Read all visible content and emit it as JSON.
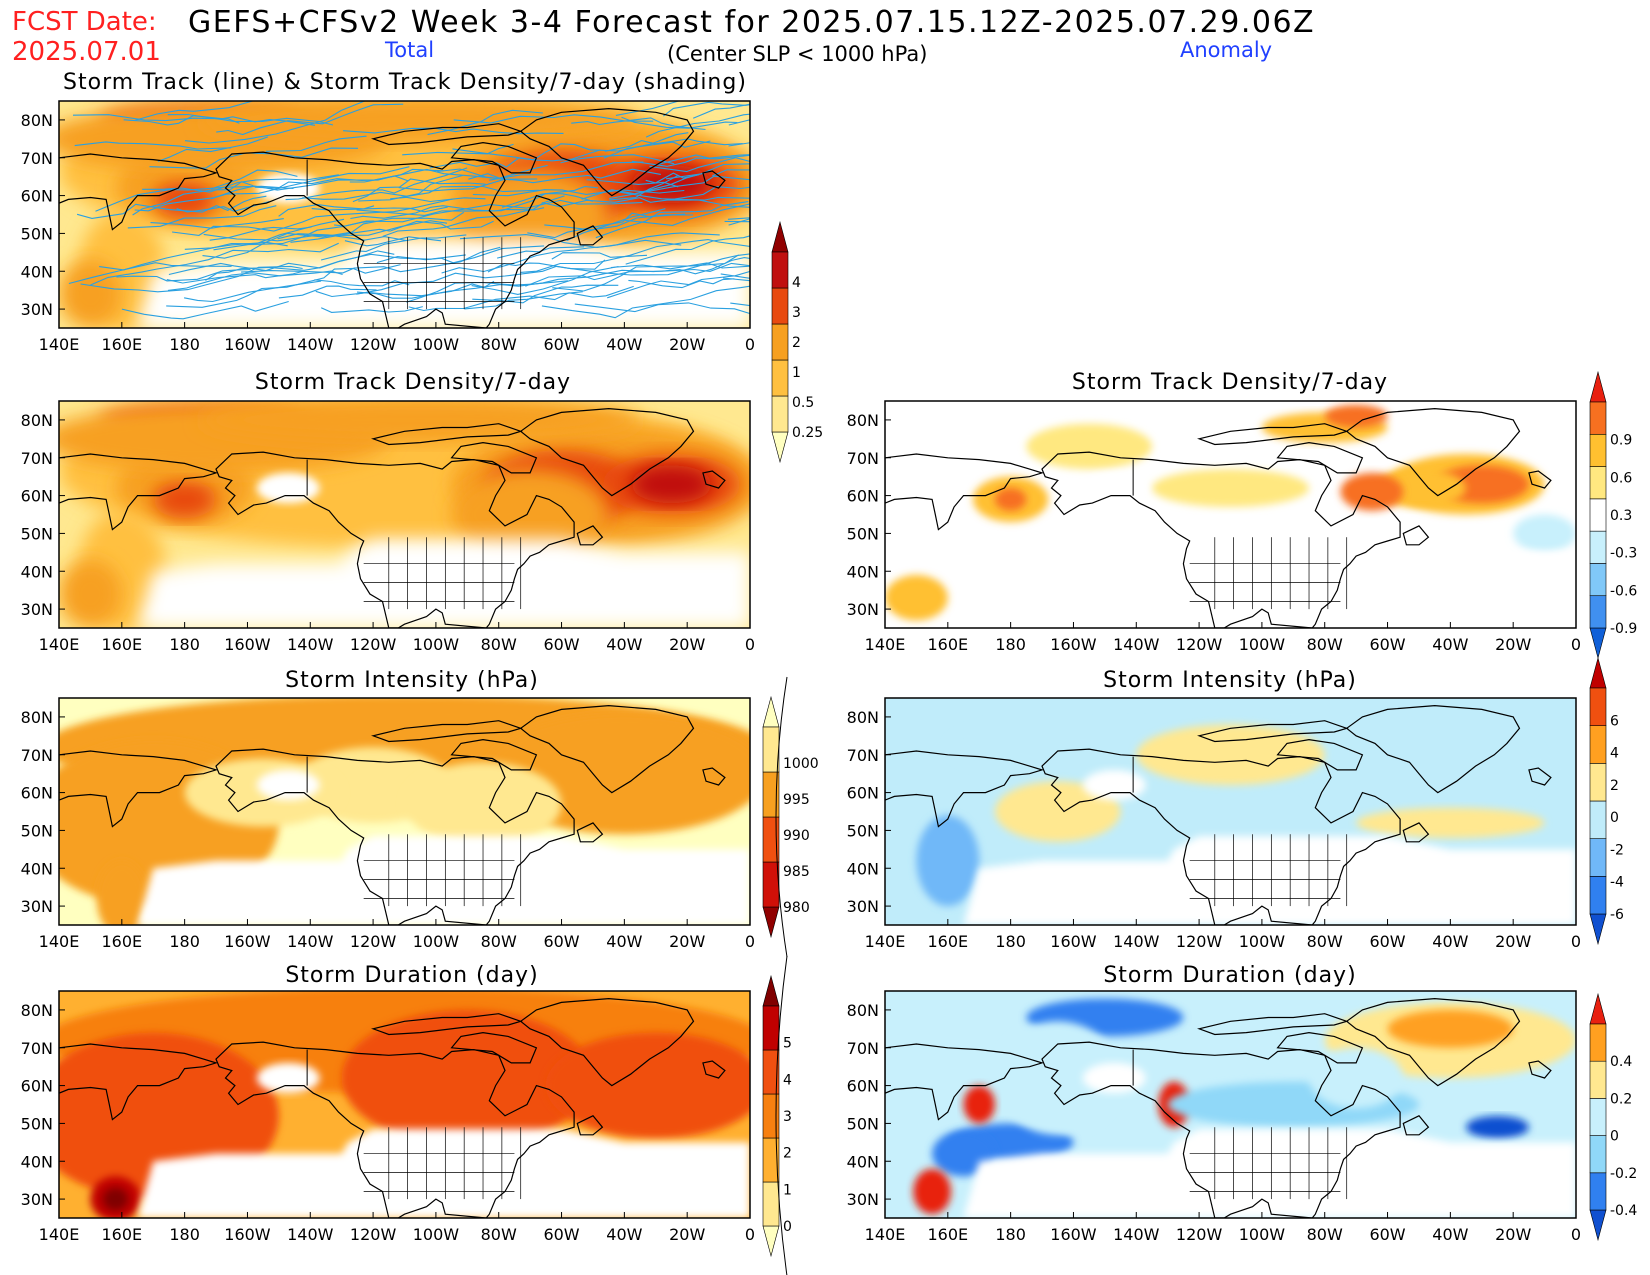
{
  "header": {
    "fcst_date_label": "FCST Date:",
    "fcst_date": "2025.07.01",
    "title": "GEFS+CFSv2 Week 3-4 Forecast for 2025.07.15.12Z-2025.07.29.06Z",
    "subtitle": "(Center SLP < 1000 hPa)",
    "total_label": "Total",
    "anomaly_label": "Anomaly"
  },
  "colors": {
    "header_red": "#ff2020",
    "header_blue": "#2040ff",
    "track_line": "#2aa0e0",
    "land_outline": "#000000"
  },
  "axes": {
    "lon_ticks": [
      "140E",
      "160E",
      "180",
      "160W",
      "140W",
      "120W",
      "100W",
      "80W",
      "60W",
      "40W",
      "20W",
      "0"
    ],
    "lat_ticks": [
      "80N",
      "70N",
      "60N",
      "50N",
      "40N",
      "30N"
    ],
    "lon_range_deg_east": [
      140,
      360
    ],
    "lat_range": [
      25,
      85
    ]
  },
  "chart_data": [
    {
      "type": "heatmap",
      "panel": "total-track",
      "title": "Storm Track (line) & Storm Track Density/7-day (shading)",
      "overlay": "storm track lines",
      "colorbar": {
        "levels": [
          "0.25",
          "0.5",
          "1",
          "2",
          "3",
          "4"
        ],
        "colors": [
          "#ffffc0",
          "#ffe890",
          "#ffc040",
          "#f7a020",
          "#e84a10",
          "#c01010",
          "#900000"
        ]
      },
      "high_centers": [
        {
          "lon": 335,
          "lat": 63,
          "value": 3.5
        },
        {
          "lon": 295,
          "lat": 61,
          "value": 2.5
        },
        {
          "lon": 180,
          "lat": 60,
          "value": 2
        },
        {
          "lon": 185,
          "lat": 80,
          "value": 2
        }
      ]
    },
    {
      "type": "heatmap",
      "panel": "total-density",
      "title": "Storm Track Density/7-day",
      "colorbar": {
        "levels": [
          "0.25",
          "0.5",
          "1",
          "2",
          "3",
          "4"
        ],
        "colors": [
          "#ffffc0",
          "#ffe890",
          "#ffc040",
          "#f7a020",
          "#e84a10",
          "#c01010",
          "#900000"
        ]
      },
      "high_centers": [
        {
          "lon": 335,
          "lat": 63,
          "value": 3.5
        },
        {
          "lon": 295,
          "lat": 61,
          "value": 2.5
        },
        {
          "lon": 180,
          "lat": 60,
          "value": 2
        },
        {
          "lon": 190,
          "lat": 80,
          "value": 2
        }
      ]
    },
    {
      "type": "heatmap",
      "panel": "anomaly-density",
      "title": "Storm Track Density/7-day",
      "colorbar": {
        "levels": [
          "-0.9",
          "-0.6",
          "-0.3",
          "0.3",
          "0.6",
          "0.9"
        ],
        "colors": [
          "#1060d8",
          "#4090f0",
          "#80c8f8",
          "#c8f0fc",
          "#ffffff",
          "#ffe880",
          "#ffc030",
          "#f77020",
          "#e82010"
        ]
      },
      "high_centers": [
        {
          "lon": 325,
          "lat": 63,
          "value": 0.9
        },
        {
          "lon": 295,
          "lat": 61,
          "value": 0.7
        },
        {
          "lon": 180,
          "lat": 59,
          "value": 0.7
        }
      ]
    },
    {
      "type": "heatmap",
      "panel": "total-intensity",
      "title": "Storm Intensity (hPa)",
      "colorbar": {
        "levels": [
          "980",
          "985",
          "990",
          "995",
          "1000"
        ],
        "colors": [
          "#900000",
          "#d01008",
          "#f05010",
          "#f7a020",
          "#ffe890",
          "#ffffc0"
        ]
      }
    },
    {
      "type": "heatmap",
      "panel": "anomaly-intensity",
      "title": "Storm Intensity (hPa)",
      "colorbar": {
        "levels": [
          "-6",
          "-4",
          "-2",
          "0",
          "2",
          "4",
          "6"
        ],
        "colors": [
          "#1050d0",
          "#3080f0",
          "#70b8f8",
          "#c0ecfa",
          "#ffe890",
          "#ffa020",
          "#f05010",
          "#c00000"
        ]
      }
    },
    {
      "type": "heatmap",
      "panel": "total-duration",
      "title": "Storm Duration (day)",
      "colorbar": {
        "levels": [
          "0",
          "1",
          "2",
          "3",
          "4",
          "5"
        ],
        "colors": [
          "#ffffc0",
          "#ffe890",
          "#ffb030",
          "#f78010",
          "#f05010",
          "#c00000",
          "#800000"
        ]
      },
      "high_centers": [
        {
          "lon": 155,
          "lat": 31,
          "value": 5
        }
      ]
    },
    {
      "type": "heatmap",
      "panel": "anomaly-duration",
      "title": "Storm Duration (day)",
      "colorbar": {
        "levels": [
          "-0.4",
          "-0.2",
          "0",
          "0.2",
          "0.4"
        ],
        "colors": [
          "#1050d0",
          "#3080f0",
          "#90d8f8",
          "#c8f0fc",
          "#ffe890",
          "#ffa020",
          "#e82010"
        ]
      }
    }
  ]
}
